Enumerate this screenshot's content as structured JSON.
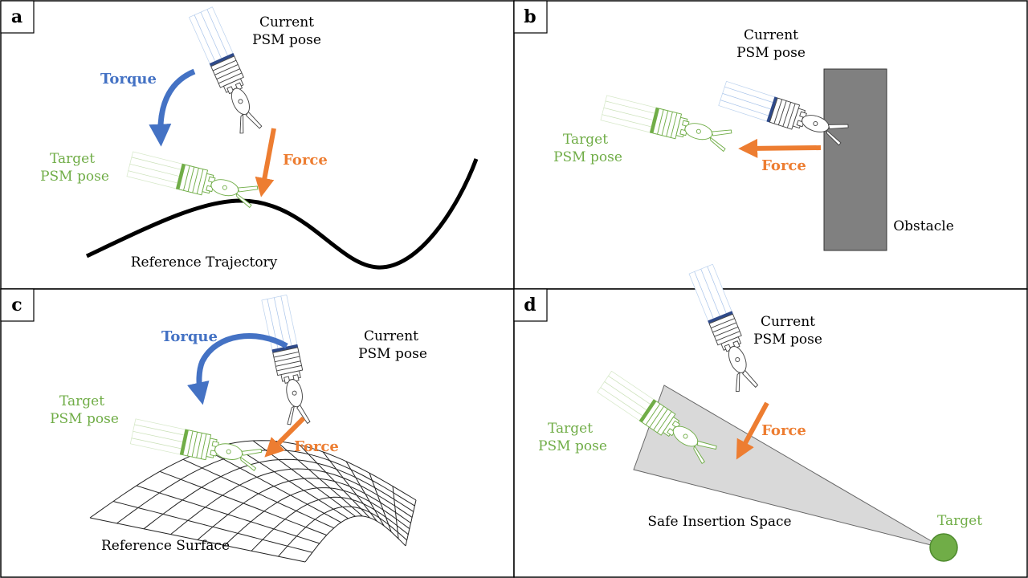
{
  "panels": {
    "a": {
      "letter": "a",
      "current_label": [
        "Current",
        "PSM pose"
      ],
      "target_label": [
        "Target",
        "PSM pose"
      ],
      "torque_label": "Torque",
      "force_label": "Force",
      "curve_label": "Reference Trajectory"
    },
    "b": {
      "letter": "b",
      "current_label": [
        "Current",
        "PSM pose"
      ],
      "target_label": [
        "Target",
        "PSM pose"
      ],
      "force_label": "Force",
      "obstacle_label": "Obstacle"
    },
    "c": {
      "letter": "c",
      "current_label": [
        "Current",
        "PSM pose"
      ],
      "target_label": [
        "Target",
        "PSM pose"
      ],
      "torque_label": "Torque",
      "force_label": "Force",
      "surface_label": "Reference Surface"
    },
    "d": {
      "letter": "d",
      "current_label": [
        "Current",
        "PSM pose"
      ],
      "target_label": [
        "Target",
        "PSM pose"
      ],
      "force_label": "Force",
      "space_label": "Safe Insertion Space",
      "target_point_label": "Target"
    }
  },
  "colors": {
    "force": "#ed7d31",
    "torque": "#4472c4",
    "target": "#70ad47",
    "obstacle": "#808080",
    "safe_space": "#d9d9d9"
  }
}
